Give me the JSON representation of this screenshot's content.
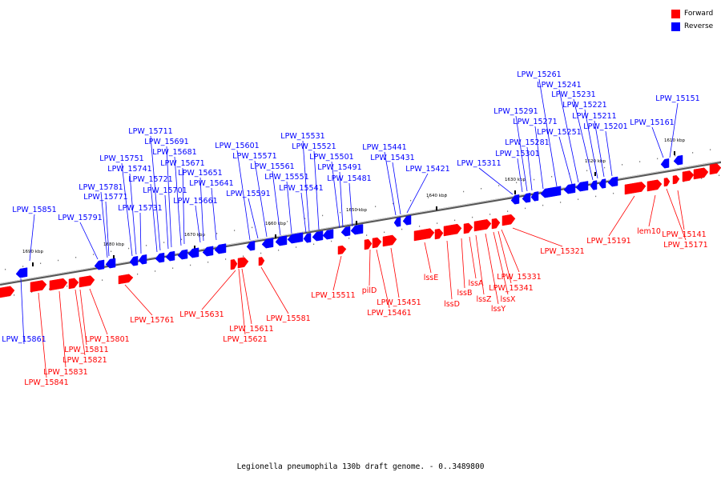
{
  "legend": {
    "forward_label": "Forward",
    "reverse_label": "Reverse",
    "forward_color": "#ff0000",
    "reverse_color": "#0000ff"
  },
  "caption": "Legionella pneumophila 130b draft genome. - 0..3489800",
  "colors": {
    "forward": "#ff0000",
    "reverse": "#0000ff",
    "axis": "#808080"
  },
  "ticks": [
    "1690 kbp",
    "1680 kbp",
    "1670 kbp",
    "1660 kbp",
    "1650 kbp",
    "1640 kbp",
    "1630 kbp",
    "1620 kbp",
    "1610 kbp"
  ],
  "reverse_genes": [
    "LPW_15851",
    "LPW_15791",
    "LPW_15781",
    "LPW_15771",
    "LPW_15751",
    "LPW_15741",
    "LPW_15731",
    "LPW_15721",
    "LPW_15711",
    "LPW_15701",
    "LPW_15691",
    "LPW_15681",
    "LPW_15671",
    "LPW_15661",
    "LPW_15651",
    "LPW_15641",
    "LPW_15601",
    "LPW_15591",
    "LPW_15571",
    "LPW_15561",
    "LPW_15551",
    "LPW_15541",
    "LPW_15531",
    "LPW_15521",
    "LPW_15501",
    "LPW_15491",
    "LPW_15481",
    "LPW_15441",
    "LPW_15431",
    "LPW_15421",
    "LPW_15311",
    "LPW_15301",
    "LPW_15291",
    "LPW_15281",
    "LPW_15271",
    "LPW_15261",
    "LPW_15251",
    "LPW_15241",
    "LPW_15231",
    "LPW_15221",
    "LPW_15211",
    "LPW_15201",
    "LPW_15161",
    "LPW_15151",
    "LPW_15861"
  ],
  "forward_genes": [
    "LPW_15841",
    "LPW_15831",
    "LPW_15821",
    "LPW_15811",
    "LPW_15801",
    "LPW_15761",
    "LPW_15631",
    "LPW_15621",
    "LPW_15611",
    "LPW_15581",
    "LPW_15511",
    "pilD",
    "LPW_15461",
    "LPW_15451",
    "lssE",
    "lssD",
    "lssB",
    "lssA",
    "lssZ",
    "lssY",
    "lssX",
    "LPW_15341",
    "LPW_15331",
    "LPW_15321",
    "LPW_15191",
    "lem10",
    "LPW_15171",
    "LPW_15141"
  ]
}
